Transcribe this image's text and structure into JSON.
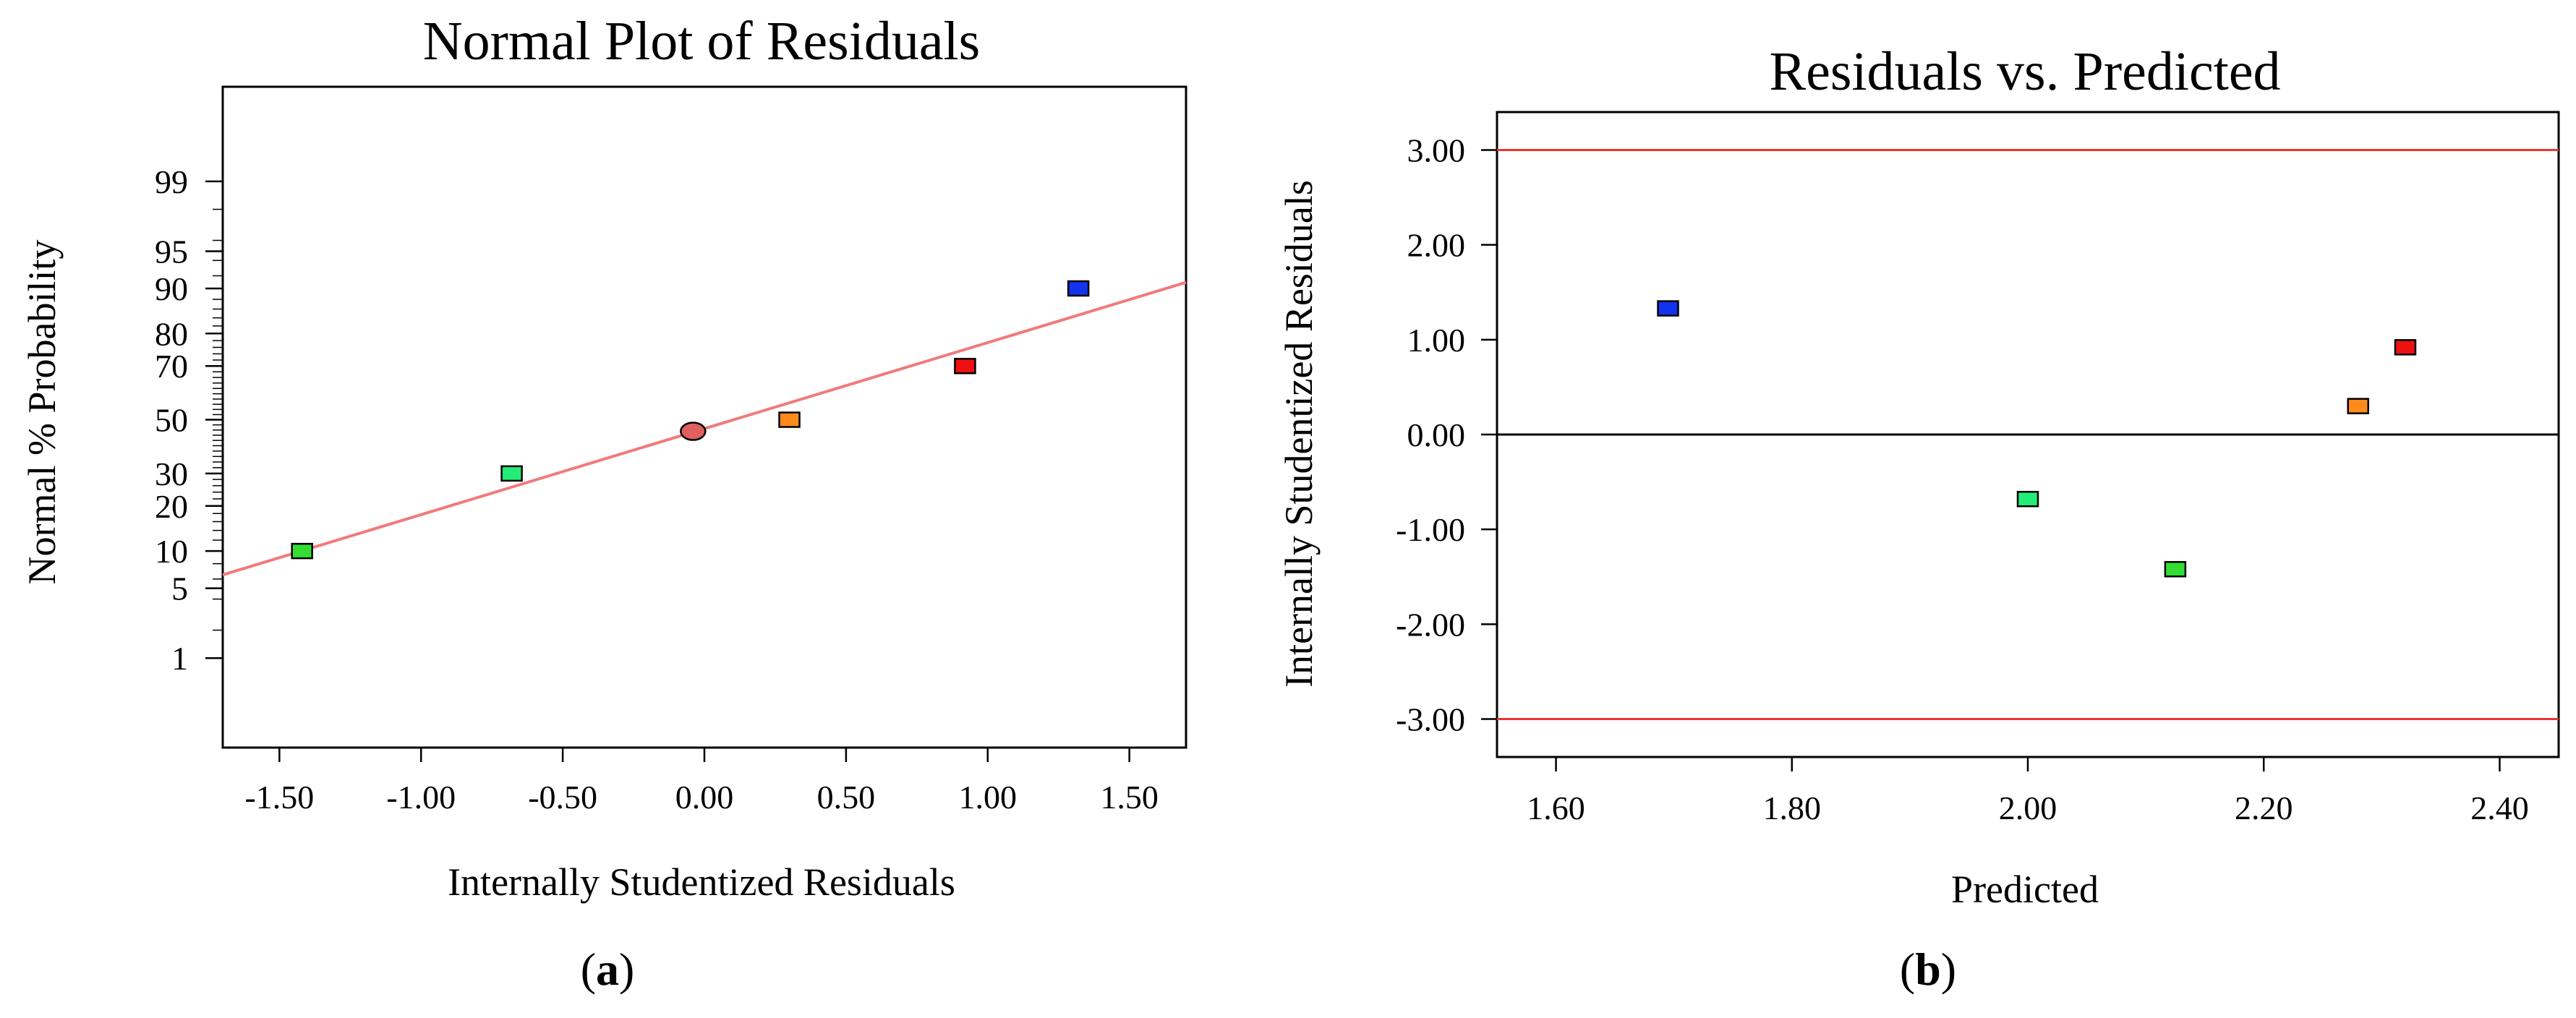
{
  "chart_data": [
    {
      "type": "scatter",
      "id": "a",
      "title": "Normal Plot of Residuals",
      "xlabel": "Internally Studentized Residuals",
      "ylabel": "Normal % Probability",
      "panel_label": "a",
      "x_ticks": [
        "-1.50",
        "-1.00",
        "-0.50",
        "0.00",
        "0.50",
        "1.00",
        "1.50"
      ],
      "x_tick_values": [
        -1.5,
        -1.0,
        -0.5,
        0.0,
        0.5,
        1.0,
        1.5
      ],
      "xlim": [
        -1.7,
        1.7
      ],
      "y_ticks": [
        "1",
        "5",
        "10",
        "20",
        "30",
        "50",
        "70",
        "80",
        "90",
        "95",
        "99"
      ],
      "y_tick_values": [
        1,
        5,
        10,
        20,
        30,
        50,
        70,
        80,
        90,
        95,
        99
      ],
      "ylim_probit": [
        -3.2,
        3.25
      ],
      "fit_line": {
        "x": [
          -1.7,
          1.7
        ],
        "prob": [
          6.5,
          91.0
        ],
        "color": "#f07b7b"
      },
      "points": [
        {
          "x": -1.42,
          "prob": 10,
          "color": "#33dd33",
          "marker": "square"
        },
        {
          "x": -0.68,
          "prob": 30,
          "color": "#22ee77",
          "marker": "square"
        },
        {
          "x": -0.04,
          "prob": 45.5,
          "color": "#e06060",
          "marker": "circle"
        },
        {
          "x": 0.3,
          "prob": 50,
          "color": "#ff8c1a",
          "marker": "square"
        },
        {
          "x": 0.92,
          "prob": 70,
          "color": "#ee1111",
          "marker": "square"
        },
        {
          "x": 1.32,
          "prob": 90,
          "color": "#1133ee",
          "marker": "square"
        }
      ]
    },
    {
      "type": "scatter",
      "id": "b",
      "title": "Residuals vs. Predicted",
      "xlabel": "Predicted",
      "ylabel": "Internally Studentized Residuals",
      "panel_label": "b",
      "x_ticks": [
        "1.60",
        "1.80",
        "2.00",
        "2.20",
        "2.40"
      ],
      "x_tick_values": [
        1.6,
        1.8,
        2.0,
        2.2,
        2.4
      ],
      "xlim": [
        1.55,
        2.45
      ],
      "y_ticks": [
        "3.00",
        "2.00",
        "1.00",
        "0.00",
        "-1.00",
        "-2.00",
        "-3.00"
      ],
      "y_tick_values": [
        3,
        2,
        1,
        0,
        -1,
        -2,
        -3
      ],
      "ylim": [
        -3.4,
        3.4
      ],
      "limit_lines": {
        "values": [
          3.0,
          -3.0
        ],
        "color": "#ee3333"
      },
      "zero_line": {
        "value": 0,
        "color": "#000000"
      },
      "points": [
        {
          "x": 1.695,
          "y": 1.33,
          "color": "#1133ee",
          "marker": "square"
        },
        {
          "x": 2.0,
          "y": -0.68,
          "color": "#22ee77",
          "marker": "square"
        },
        {
          "x": 2.125,
          "y": -1.42,
          "color": "#33dd33",
          "marker": "square"
        },
        {
          "x": 2.28,
          "y": 0.3,
          "color": "#ff8c1a",
          "marker": "square"
        },
        {
          "x": 2.32,
          "y": 0.92,
          "color": "#ee1111",
          "marker": "square"
        }
      ]
    }
  ]
}
